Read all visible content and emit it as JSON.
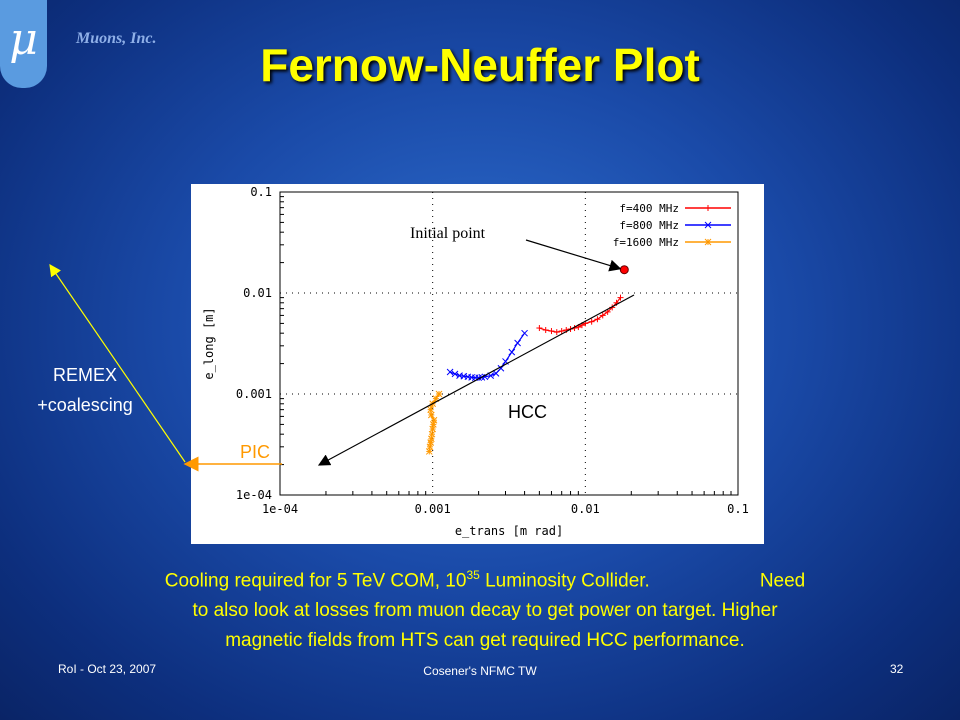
{
  "logo": {
    "glyph": "μ",
    "icon": "mu-logo-icon"
  },
  "company": "Muons, Inc.",
  "title": "Fernow-Neuffer Plot",
  "annotations": {
    "remex_line1": "REMEX",
    "remex_line2": "+coalescing",
    "pic": "PIC",
    "hcc": "HCC",
    "initial_point": "Initial point"
  },
  "caption": {
    "part1": "Cooling required for 5 TeV COM, 10",
    "sup": "35",
    "part2": " Luminosity Collider.",
    "part3": "Need",
    "line2": "to also look at losses from muon decay to get power on target.  Higher",
    "line3": "magnetic fields from HTS can get required HCC performance."
  },
  "footer": {
    "left": "RoI - Oct 23, 2007",
    "center": "Cosener's NFMC TW",
    "right": "32"
  },
  "chart_data": {
    "type": "scatter",
    "xscale": "log",
    "yscale": "log",
    "xlabel": "e_trans [m rad]",
    "ylabel": "e_long [m]",
    "xlim": [
      0.0001,
      0.1
    ],
    "ylim": [
      0.0001,
      0.1
    ],
    "xticks": [
      "1e-04",
      "0.001",
      "0.01",
      "0.1"
    ],
    "yticks": [
      "1e-04",
      "0.001",
      "0.01",
      "0.1"
    ],
    "grid": true,
    "legend": "top-right",
    "series": [
      {
        "name": "f=400 MHz",
        "color": "#ff0000",
        "marker": "+",
        "x": [
          0.005,
          0.0055,
          0.006,
          0.0065,
          0.007,
          0.0075,
          0.008,
          0.0085,
          0.009,
          0.0095,
          0.01,
          0.011,
          0.012,
          0.013,
          0.014,
          0.015,
          0.016,
          0.017
        ],
        "y": [
          0.0045,
          0.0043,
          0.0042,
          0.0041,
          0.0042,
          0.0043,
          0.0044,
          0.0045,
          0.0046,
          0.0048,
          0.005,
          0.0052,
          0.0055,
          0.006,
          0.0065,
          0.0072,
          0.008,
          0.009
        ]
      },
      {
        "name": "f=800 MHz",
        "color": "#0000ff",
        "marker": "x",
        "x": [
          0.0013,
          0.0014,
          0.0015,
          0.0016,
          0.0017,
          0.0018,
          0.0019,
          0.002,
          0.0021,
          0.0022,
          0.0024,
          0.0026,
          0.0028,
          0.003,
          0.0033,
          0.0036,
          0.004
        ],
        "y": [
          0.00165,
          0.00158,
          0.00152,
          0.0015,
          0.00148,
          0.00146,
          0.00145,
          0.00145,
          0.00146,
          0.00148,
          0.00152,
          0.0016,
          0.0018,
          0.0021,
          0.0026,
          0.0032,
          0.004
        ]
      },
      {
        "name": "f=1600 MHz",
        "color": "#ff9900",
        "marker": "*",
        "x": [
          0.00095,
          0.00096,
          0.00097,
          0.00098,
          0.00099,
          0.001,
          0.00101,
          0.00102,
          0.00098,
          0.00097,
          0.001,
          0.00105,
          0.0011
        ],
        "y": [
          0.00027,
          0.0003,
          0.00033,
          0.00036,
          0.0004,
          0.00045,
          0.0005,
          0.00055,
          0.00062,
          0.0007,
          0.0008,
          0.0009,
          0.001
        ]
      }
    ],
    "initial_point": {
      "x": 0.018,
      "y": 0.017,
      "color": "#ff0000"
    }
  }
}
